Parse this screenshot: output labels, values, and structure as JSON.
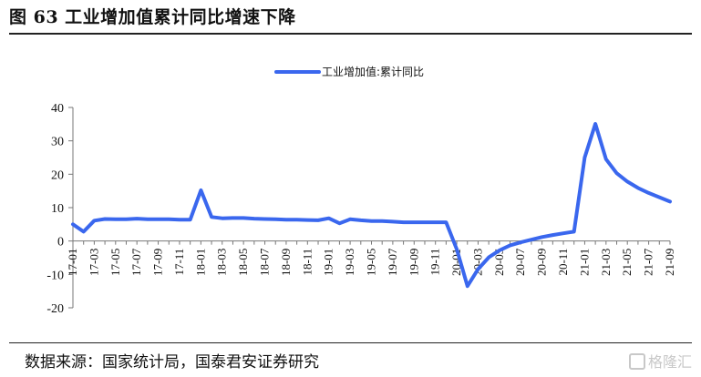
{
  "figure": {
    "title": "图 63  工业增加值累计同比增速下降",
    "source": "数据来源：国家统计局，国泰君安证券研究",
    "watermark": "格隆汇"
  },
  "chart_data": {
    "type": "line",
    "ylim": [
      -20,
      40
    ],
    "yticks": [
      -20,
      -10,
      0,
      10,
      20,
      30,
      40
    ],
    "legend_position": "top-center",
    "grid": false,
    "color": "#3a67ee",
    "x_tick_labels": [
      "17-01",
      "17-03",
      "17-05",
      "17-07",
      "17-09",
      "17-11",
      "18-01",
      "18-03",
      "18-05",
      "18-07",
      "18-09",
      "18-11",
      "19-01",
      "19-03",
      "19-05",
      "19-07",
      "19-09",
      "19-11",
      "20-01",
      "20-03",
      "20-05",
      "20-07",
      "20-09",
      "20-11",
      "21-01",
      "21-03",
      "21-05",
      "21-07",
      "21-09"
    ],
    "series": [
      {
        "name": "工业增加值:累计同比",
        "points": [
          [
            "17-01",
            5.0
          ],
          [
            "17-02",
            2.8
          ],
          [
            "17-03",
            6.1
          ],
          [
            "17-04",
            6.6
          ],
          [
            "17-05",
            6.5
          ],
          [
            "17-06",
            6.5
          ],
          [
            "17-07",
            6.7
          ],
          [
            "17-08",
            6.5
          ],
          [
            "17-09",
            6.5
          ],
          [
            "17-10",
            6.5
          ],
          [
            "17-11",
            6.4
          ],
          [
            "17-12",
            6.4
          ],
          [
            "18-01",
            15.2
          ],
          [
            "18-02",
            7.2
          ],
          [
            "18-03",
            6.8
          ],
          [
            "18-04",
            6.9
          ],
          [
            "18-05",
            6.9
          ],
          [
            "18-06",
            6.7
          ],
          [
            "18-07",
            6.6
          ],
          [
            "18-08",
            6.5
          ],
          [
            "18-09",
            6.4
          ],
          [
            "18-10",
            6.4
          ],
          [
            "18-11",
            6.3
          ],
          [
            "18-12",
            6.2
          ],
          [
            "19-01",
            6.8
          ],
          [
            "19-02",
            5.3
          ],
          [
            "19-03",
            6.5
          ],
          [
            "19-04",
            6.2
          ],
          [
            "19-05",
            6.0
          ],
          [
            "19-06",
            6.0
          ],
          [
            "19-07",
            5.8
          ],
          [
            "19-08",
            5.6
          ],
          [
            "19-09",
            5.6
          ],
          [
            "19-10",
            5.6
          ],
          [
            "19-11",
            5.6
          ],
          [
            "19-12",
            5.6
          ],
          [
            "20-01",
            -2.5
          ],
          [
            "20-02",
            -13.5
          ],
          [
            "20-03",
            -8.4
          ],
          [
            "20-04",
            -4.9
          ],
          [
            "20-05",
            -2.8
          ],
          [
            "20-06",
            -1.3
          ],
          [
            "20-07",
            -0.4
          ],
          [
            "20-08",
            0.4
          ],
          [
            "20-09",
            1.2
          ],
          [
            "20-10",
            1.8
          ],
          [
            "20-11",
            2.3
          ],
          [
            "20-12",
            2.8
          ],
          [
            "21-01",
            25.0
          ],
          [
            "21-02",
            35.1
          ],
          [
            "21-03",
            24.5
          ],
          [
            "21-04",
            20.3
          ],
          [
            "21-05",
            17.8
          ],
          [
            "21-06",
            15.9
          ],
          [
            "21-07",
            14.4
          ],
          [
            "21-08",
            13.1
          ],
          [
            "21-09",
            11.8
          ]
        ]
      }
    ]
  }
}
